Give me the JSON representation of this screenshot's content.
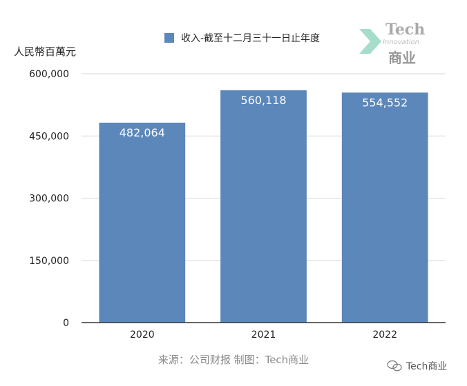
{
  "chart_data": {
    "type": "bar",
    "categories": [
      "2020",
      "2021",
      "2022"
    ],
    "series": [
      {
        "name": "收入-截至十二月三十一日止年度",
        "values": [
          482064,
          560118,
          554552
        ]
      }
    ],
    "data_labels": [
      "482,064",
      "560,118",
      "554,552"
    ],
    "ylabel": "人民幣百萬元",
    "yticks": [
      0,
      150000,
      300000,
      450000,
      600000
    ],
    "ytick_labels": [
      "0",
      "150,000",
      "300,000",
      "450,000",
      "600,000"
    ],
    "ylim": [
      0,
      600000
    ],
    "grid": true,
    "legend_position": "top",
    "bar_color": "#5b87bb"
  },
  "source": "来源：公司财报 制图：Tech商业",
  "watermark": {
    "title": "Tech",
    "subtitle": "Innovation",
    "name": "商业"
  },
  "badge": {
    "text": "Tech商业"
  }
}
